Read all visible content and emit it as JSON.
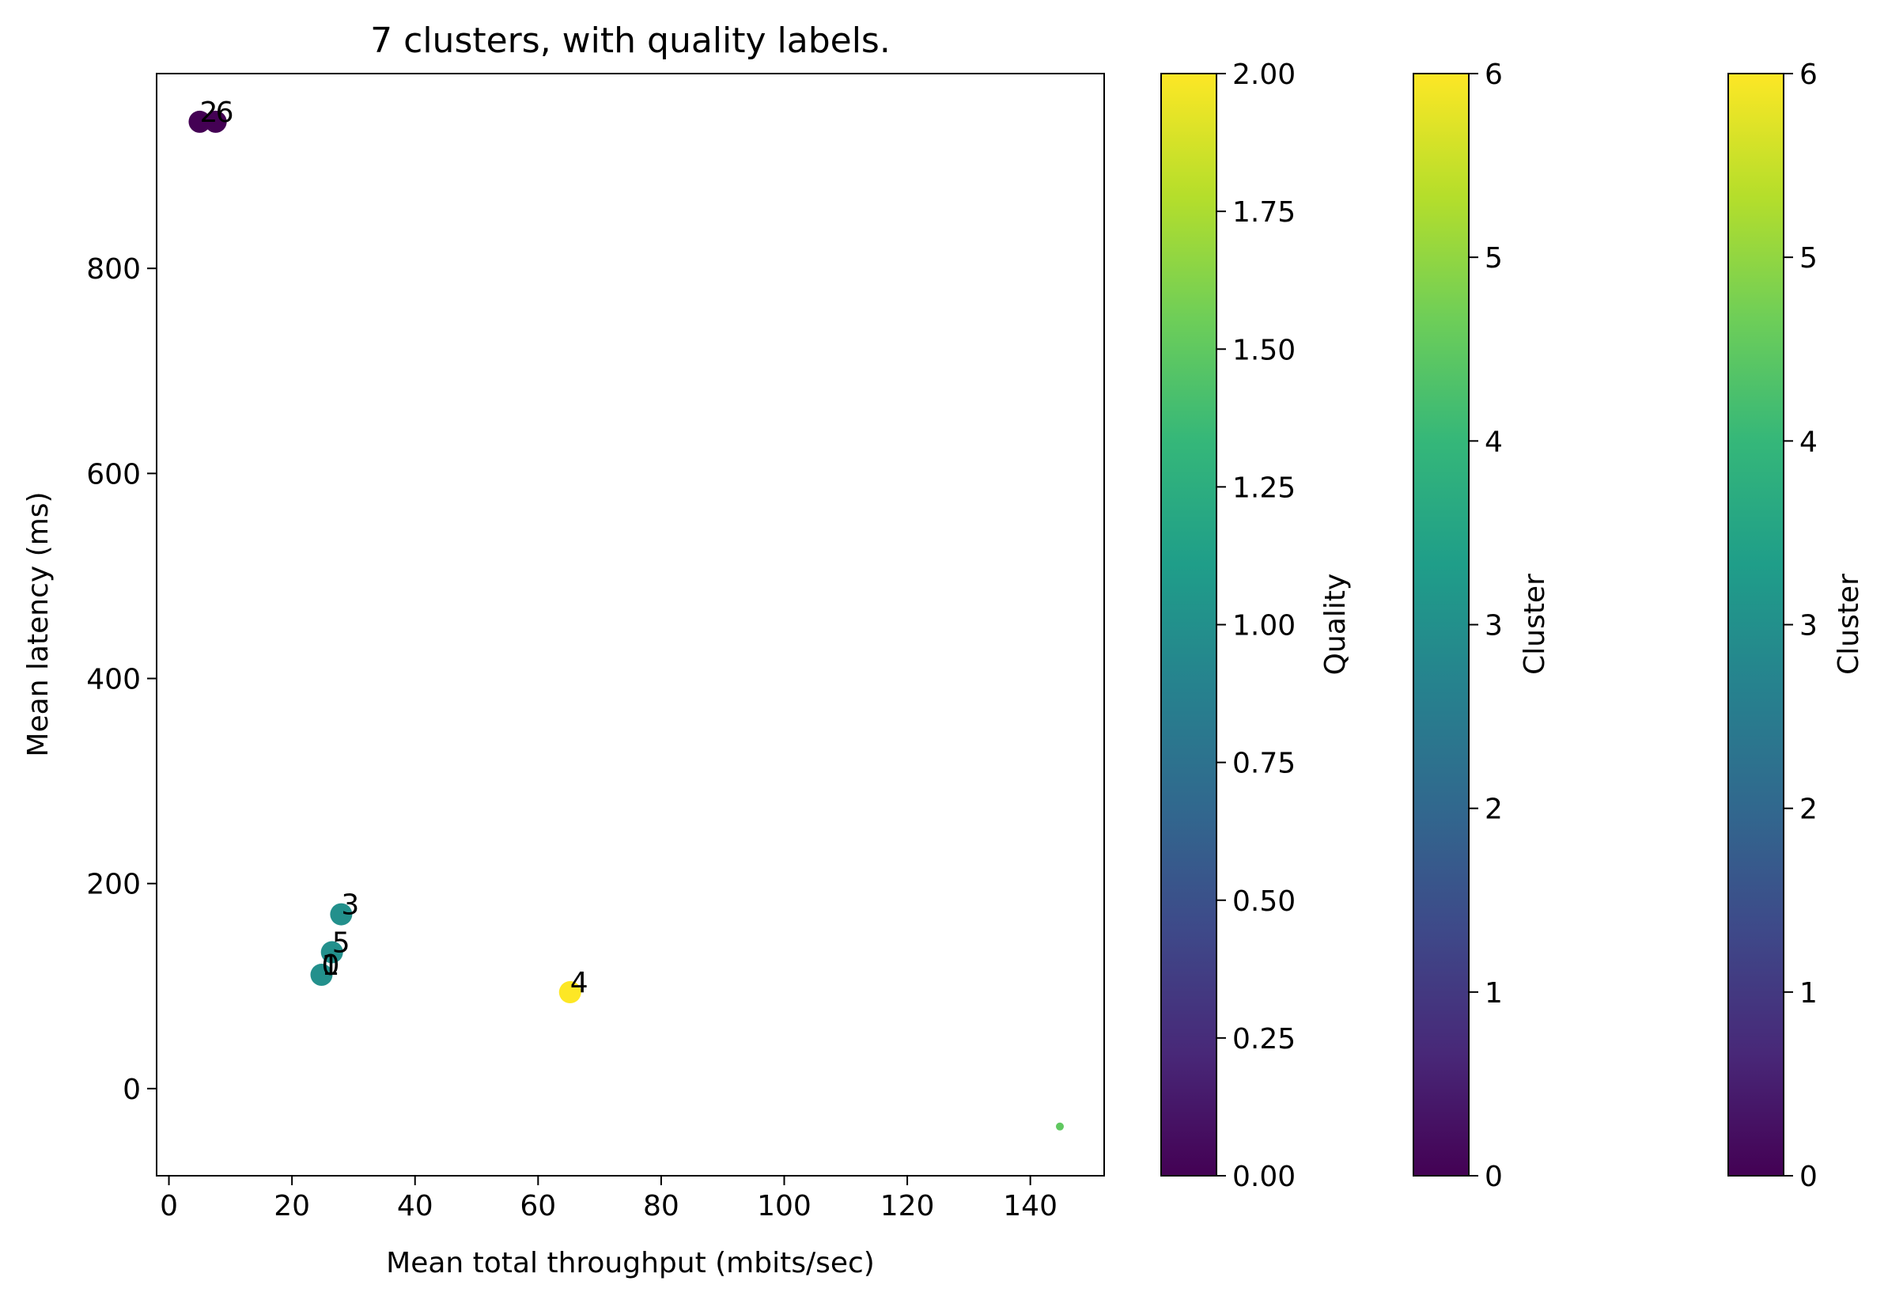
{
  "chart_data": {
    "type": "scatter",
    "title": "7 clusters, with quality labels.",
    "xlabel": "Mean total throughput (mbits/sec)",
    "ylabel": "Mean latency (ms)",
    "xlim": [
      -2,
      152
    ],
    "ylim": [
      -85,
      990
    ],
    "xticks": [
      0,
      20,
      40,
      60,
      80,
      100,
      120,
      140
    ],
    "yticks": [
      0,
      200,
      400,
      600,
      800
    ],
    "grid": false,
    "colormap": "viridis",
    "points": [
      {
        "x": 5.0,
        "y": 943,
        "quality": 0,
        "size": "large"
      },
      {
        "x": 7.6,
        "y": 943,
        "quality": 0,
        "size": "large"
      },
      {
        "x": 28.0,
        "y": 170,
        "quality": 1,
        "size": "large"
      },
      {
        "x": 26.5,
        "y": 133,
        "quality": 1,
        "size": "large"
      },
      {
        "x": 24.8,
        "y": 111,
        "quality": 1,
        "size": "large"
      },
      {
        "x": 65.2,
        "y": 94,
        "quality": 2,
        "size": "large"
      },
      {
        "x": 144.8,
        "y": -37,
        "quality": 1.5,
        "size": "small"
      }
    ],
    "annotations": [
      {
        "text": "2",
        "x": 5.0,
        "y": 943
      },
      {
        "text": "6",
        "x": 7.6,
        "y": 943
      },
      {
        "text": "3",
        "x": 28.0,
        "y": 170
      },
      {
        "text": "5",
        "x": 26.5,
        "y": 133
      },
      {
        "text": "1",
        "x": 24.8,
        "y": 111
      },
      {
        "text": "0",
        "x": 24.8,
        "y": 111
      },
      {
        "text": "4",
        "x": 65.2,
        "y": 94
      }
    ],
    "colorbars": [
      {
        "label": "Quality",
        "min": 0,
        "max": 2,
        "ticks": [
          "0.00",
          "0.25",
          "0.50",
          "0.75",
          "1.00",
          "1.25",
          "1.50",
          "1.75",
          "2.00"
        ]
      },
      {
        "label": "Cluster",
        "min": 0,
        "max": 6,
        "ticks": [
          "0",
          "1",
          "2",
          "3",
          "4",
          "5",
          "6"
        ]
      },
      {
        "label": "Cluster",
        "min": 0,
        "max": 6,
        "ticks": [
          "0",
          "1",
          "2",
          "3",
          "4",
          "5",
          "6"
        ]
      }
    ]
  },
  "colors": {
    "viridis": [
      "#440154",
      "#482878",
      "#3e4989",
      "#31688e",
      "#26828e",
      "#1f9e89",
      "#35b779",
      "#6ece58",
      "#b5de2b",
      "#fde725"
    ]
  }
}
